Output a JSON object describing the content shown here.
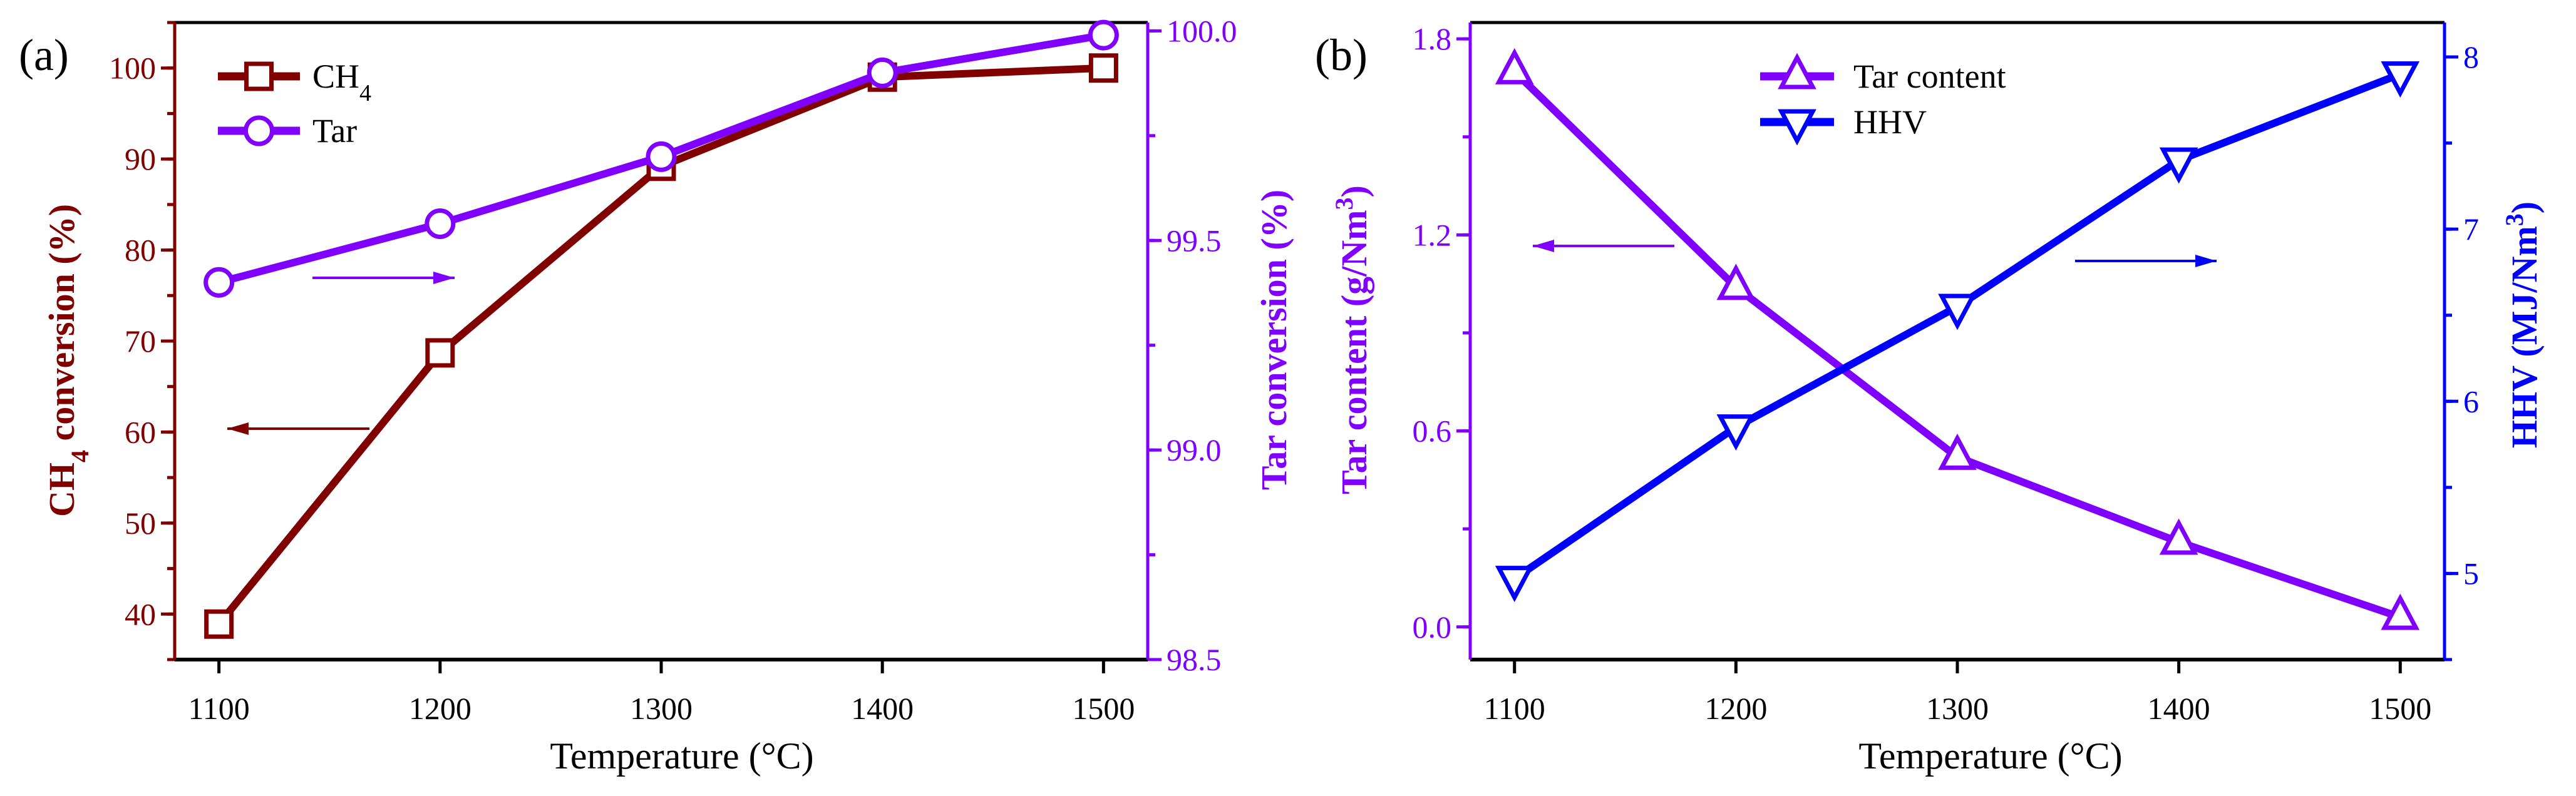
{
  "colors": {
    "ch4": "#800000",
    "tar": "#8000ff",
    "hhv": "#0000ff",
    "axis": "#000000"
  },
  "chart_data": [
    {
      "type": "line",
      "panel_label": "(a)",
      "xlabel": "Temperature (°C)",
      "x": [
        1100,
        1200,
        1300,
        1400,
        1500
      ],
      "xticks": [
        1100,
        1200,
        1300,
        1400,
        1500
      ],
      "xlim": [
        1080,
        1520
      ],
      "y_left": {
        "label": {
          "text": "CH",
          "sub": "4",
          "suffix": " conversion (%)"
        },
        "lim": [
          35,
          105
        ],
        "ticks": [
          40,
          50,
          60,
          70,
          80,
          90,
          100
        ],
        "minor_step": 5,
        "color": "#800000"
      },
      "y_right": {
        "label": {
          "text": "Tar conversion (%)",
          "sub": "",
          "suffix": ""
        },
        "lim": [
          98.5,
          100.02
        ],
        "ticks": [
          "98.5",
          "99.0",
          "99.5",
          "100.0"
        ],
        "minor_step": 0.25,
        "color": "#8000ff"
      },
      "series": [
        {
          "name": "CH4",
          "legend": {
            "text": "CH",
            "sub": "4"
          },
          "axis": "left",
          "marker": "square",
          "color": "#800000",
          "values": [
            38.9,
            68.7,
            89.2,
            99.0,
            100.0
          ]
        },
        {
          "name": "Tar",
          "legend": {
            "text": "Tar",
            "sub": ""
          },
          "axis": "right",
          "marker": "circle",
          "color": "#8000ff",
          "values": [
            99.4,
            99.54,
            99.7,
            99.9,
            99.99
          ]
        }
      ],
      "annotations": [
        {
          "type": "arrow",
          "direction": "right",
          "color": "#8000ff"
        },
        {
          "type": "arrow",
          "direction": "left",
          "color": "#800000"
        }
      ],
      "grid": false,
      "legend_position": "top-left"
    },
    {
      "type": "line",
      "panel_label": "(b)",
      "xlabel": "Temperature (°C)",
      "x": [
        1100,
        1200,
        1300,
        1400,
        1500
      ],
      "xticks": [
        1100,
        1200,
        1300,
        1400,
        1500
      ],
      "xlim": [
        1080,
        1520
      ],
      "y_left": {
        "label": {
          "text": "Tar content (g/Nm",
          "sup": "3",
          "suffix": ")"
        },
        "lim": [
          -0.1,
          1.85
        ],
        "ticks": [
          "0.0",
          "0.6",
          "1.2",
          "1.8"
        ],
        "minor_step": 0.3,
        "color": "#8000ff"
      },
      "y_right": {
        "label": {
          "text": "HHV (MJ/Nm",
          "sup": "3",
          "suffix": ")"
        },
        "lim": [
          4.5,
          8.2
        ],
        "ticks": [
          "5",
          "6",
          "7",
          "8"
        ],
        "minor_step": 0.5,
        "color": "#0000ff"
      },
      "series": [
        {
          "name": "Tar content",
          "legend": {
            "text": "Tar content",
            "sub": ""
          },
          "axis": "left",
          "marker": "triangle-up",
          "color": "#8000ff",
          "values": [
            1.7,
            1.04,
            0.52,
            0.26,
            0.03
          ]
        },
        {
          "name": "HHV",
          "legend": {
            "text": "HHV",
            "sub": ""
          },
          "axis": "right",
          "marker": "triangle-down",
          "color": "#0000ff",
          "values": [
            4.97,
            5.85,
            6.55,
            7.4,
            7.9
          ]
        }
      ],
      "annotations": [
        {
          "type": "arrow",
          "direction": "left",
          "color": "#8000ff"
        },
        {
          "type": "arrow",
          "direction": "right",
          "color": "#0000ff"
        }
      ],
      "grid": false,
      "legend_position": "top-center"
    }
  ]
}
